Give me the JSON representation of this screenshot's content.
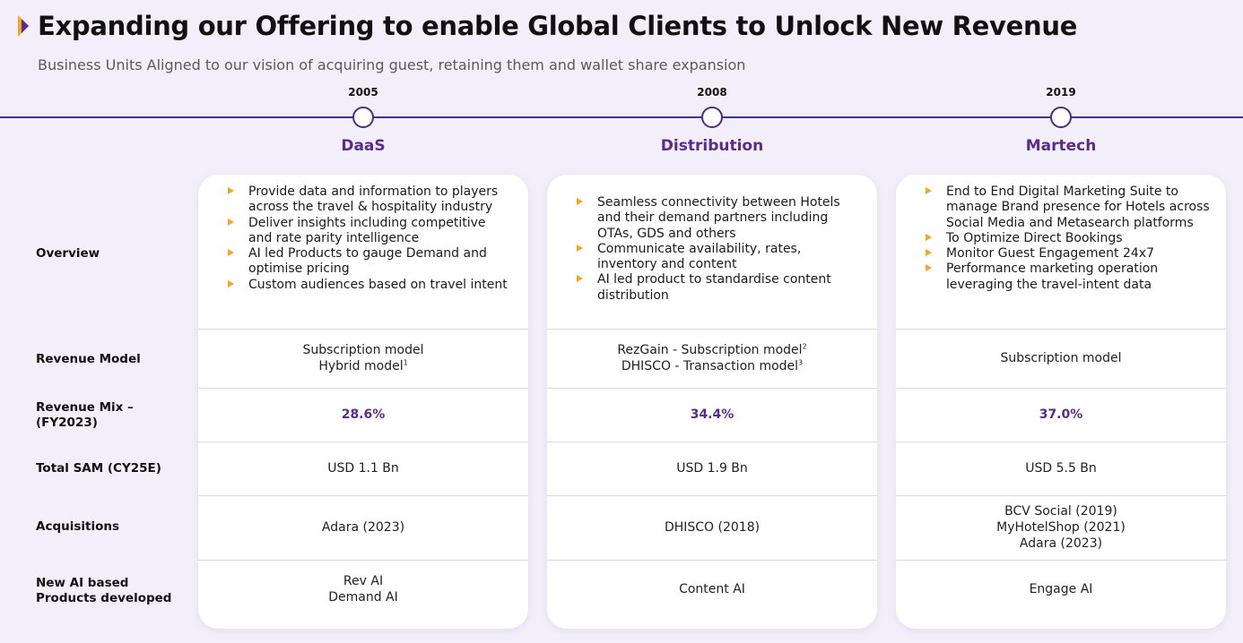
{
  "header": {
    "title": "Expanding our Offering to enable Global Clients to Unlock New Revenue",
    "subtitle": "Business Units Aligned to our vision of  acquiring guest, retaining them and wallet share expansion"
  },
  "colors": {
    "accent": "#5b2a8c",
    "timeline": "#4b2d83",
    "bullet": "#f5a623",
    "background": "#f3effa"
  },
  "row_labels": {
    "overview": "Overview",
    "revenue_model": "Revenue Model",
    "revenue_mix_1": "Revenue Mix –",
    "revenue_mix_2": "(FY2023)",
    "total_sam": "Total SAM (CY25E)",
    "acquisitions": "Acquisitions",
    "ai_products_1": "New AI based",
    "ai_products_2": "Products developed"
  },
  "units": [
    {
      "year": "2005",
      "name": "DaaS",
      "overview": [
        "Provide data and information to players across the travel & hospitality industry",
        "Deliver insights including competitive and rate parity intelligence",
        "AI led Products to gauge Demand and optimise pricing",
        "Custom audiences based on travel intent"
      ],
      "revenue_model": [
        "Subscription model",
        "Hybrid model"
      ],
      "revenue_model_sup": [
        "",
        "1"
      ],
      "revenue_mix": "28.6%",
      "total_sam": "USD 1.1 Bn",
      "acquisitions": [
        "Adara (2023)"
      ],
      "ai_products": [
        "Rev AI",
        "Demand AI"
      ]
    },
    {
      "year": "2008",
      "name": "Distribution",
      "overview": [
        "Seamless connectivity between Hotels and their demand partners including OTAs, GDS and others",
        "Communicate availability, rates, inventory and content",
        "AI led product to standardise content distribution"
      ],
      "revenue_model": [
        "RezGain - Subscription model",
        "DHISCO - Transaction model"
      ],
      "revenue_model_sup": [
        "2",
        "3"
      ],
      "revenue_mix": "34.4%",
      "total_sam": "USD 1.9 Bn",
      "acquisitions": [
        "DHISCO (2018)"
      ],
      "ai_products": [
        "Content AI"
      ]
    },
    {
      "year": "2019",
      "name": "Martech",
      "overview": [
        "End to End Digital Marketing Suite to manage Brand presence for Hotels across Social Media and Metasearch platforms",
        "To Optimize Direct Bookings",
        "Monitor Guest Engagement 24x7",
        "Performance marketing operation leveraging the travel-intent data"
      ],
      "revenue_model": [
        "Subscription model"
      ],
      "revenue_model_sup": [
        ""
      ],
      "revenue_mix": "37.0%",
      "total_sam": "USD 5.5 Bn",
      "acquisitions": [
        "BCV Social (2019)",
        "MyHotelShop (2021)",
        "Adara (2023)"
      ],
      "ai_products": [
        "Engage AI"
      ]
    }
  ]
}
